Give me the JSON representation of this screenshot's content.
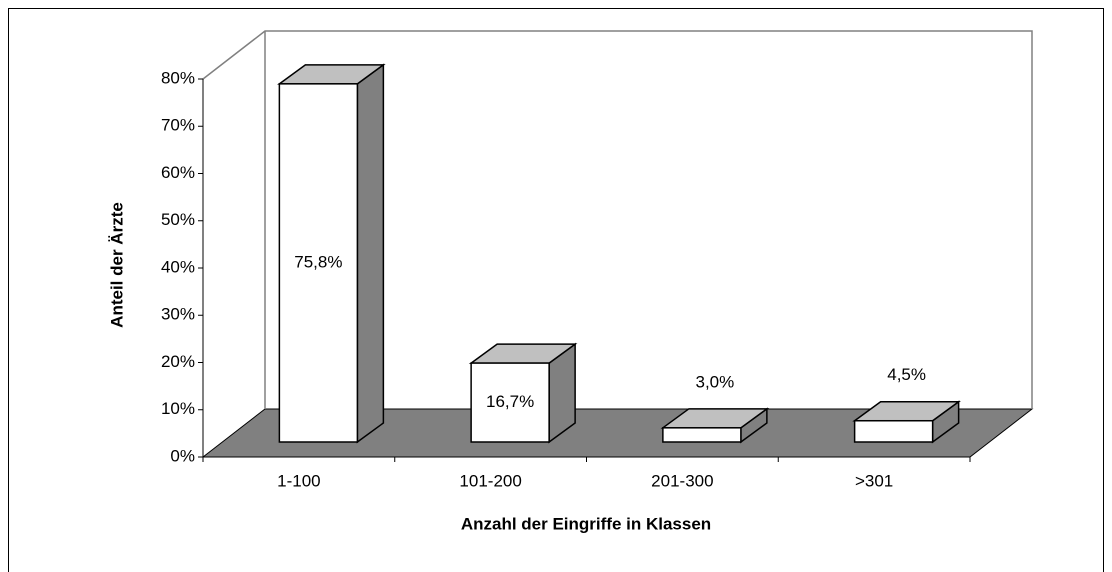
{
  "chart_data": {
    "type": "bar3d",
    "xlabel": "Anzahl der Eingriffe in Klassen",
    "ylabel": "Anteil der Ärzte",
    "categories": [
      "1-100",
      "101-200",
      "201-300",
      ">301"
    ],
    "values": [
      75.8,
      16.7,
      3.0,
      4.5
    ],
    "value_labels": [
      "75,8%",
      "16,7%",
      "3,0%",
      "4,5%"
    ],
    "color": "#ffffff",
    "ylim": [
      0,
      80
    ],
    "yticks": [
      {
        "value": 0,
        "label": "0%"
      },
      {
        "value": 10,
        "label": "10%"
      },
      {
        "value": 20,
        "label": "20%"
      },
      {
        "value": 30,
        "label": "30%"
      },
      {
        "value": 40,
        "label": "40%"
      },
      {
        "value": 50,
        "label": "50%"
      },
      {
        "value": 60,
        "label": "60%"
      },
      {
        "value": 70,
        "label": "70%"
      },
      {
        "value": 80,
        "label": "80%"
      }
    ]
  }
}
